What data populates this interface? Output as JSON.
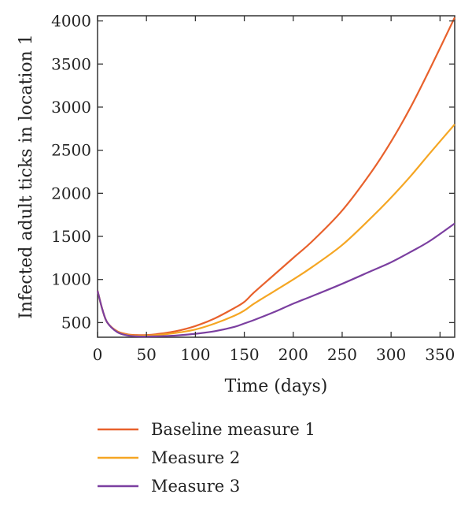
{
  "chart_data": {
    "type": "line",
    "xlabel": "Time (days)",
    "ylabel": "Infected adult ticks in location 1",
    "xlim": [
      0,
      365
    ],
    "ylim": [
      330,
      4060
    ],
    "x_ticks": [
      0,
      50,
      100,
      150,
      200,
      250,
      300,
      350
    ],
    "y_ticks": [
      500,
      1000,
      1500,
      2000,
      2500,
      3000,
      3500,
      4000
    ],
    "grid": false,
    "legend_position": "bottom",
    "series": [
      {
        "name": "Baseline measure 1",
        "color": "#e8612c",
        "x": [
          0,
          5,
          10,
          20,
          30,
          40,
          50,
          60,
          80,
          100,
          120,
          140,
          150,
          160,
          180,
          200,
          220,
          250,
          280,
          300,
          320,
          340,
          365
        ],
        "y": [
          870,
          650,
          500,
          400,
          365,
          355,
          355,
          365,
          400,
          460,
          550,
          670,
          740,
          850,
          1050,
          1250,
          1450,
          1800,
          2250,
          2600,
          3000,
          3450,
          4040
        ]
      },
      {
        "name": "Measure 2",
        "color": "#f5a623",
        "x": [
          0,
          5,
          10,
          20,
          30,
          40,
          50,
          60,
          80,
          100,
          120,
          140,
          150,
          160,
          180,
          200,
          220,
          250,
          280,
          300,
          320,
          340,
          365
        ],
        "y": [
          870,
          650,
          500,
          395,
          358,
          348,
          348,
          355,
          380,
          420,
          490,
          580,
          640,
          720,
          860,
          1000,
          1150,
          1400,
          1720,
          1950,
          2200,
          2470,
          2800
        ]
      },
      {
        "name": "Measure 3",
        "color": "#7b3fa0",
        "x": [
          0,
          5,
          10,
          20,
          30,
          40,
          50,
          60,
          80,
          100,
          120,
          140,
          150,
          160,
          180,
          200,
          220,
          250,
          280,
          300,
          320,
          340,
          365
        ],
        "y": [
          870,
          650,
          500,
          390,
          352,
          340,
          338,
          340,
          350,
          370,
          400,
          450,
          490,
          530,
          620,
          720,
          810,
          950,
          1100,
          1200,
          1320,
          1450,
          1650
        ]
      }
    ]
  }
}
